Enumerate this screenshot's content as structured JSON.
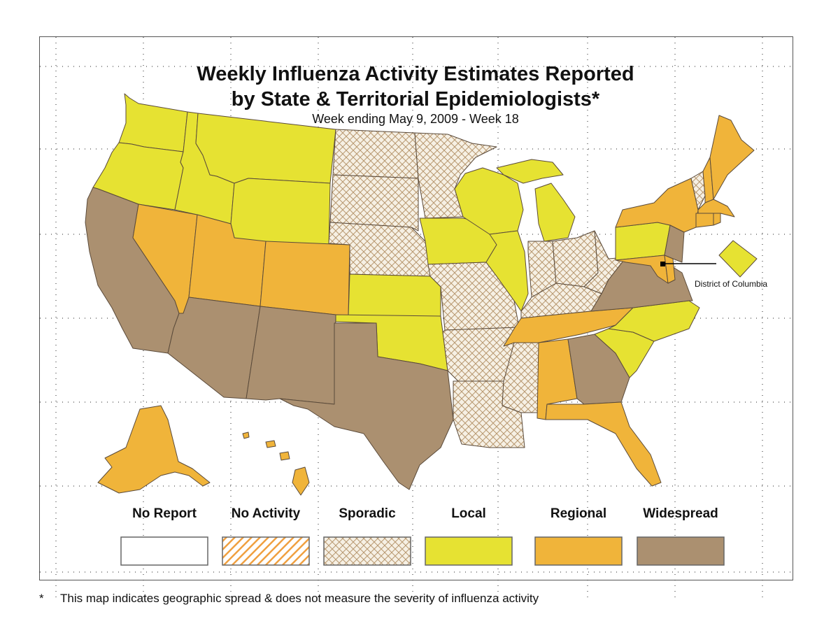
{
  "title_line1": "Weekly Influenza Activity Estimates Reported",
  "title_line2": "by State & Territorial Epidemiologists*",
  "subtitle": "Week ending May 9, 2009 - Week 18",
  "dc_label": "District of Columbia",
  "legend": [
    {
      "label": "No Report",
      "pattern": "none",
      "color": "#ffffff"
    },
    {
      "label": "No Activity",
      "pattern": "diagonal",
      "color": "#f0a040"
    },
    {
      "label": "Sporadic",
      "pattern": "crosshatch",
      "color": "#c8a878"
    },
    {
      "label": "Local",
      "pattern": "solid",
      "color": "#e6e232"
    },
    {
      "label": "Regional",
      "pattern": "solid",
      "color": "#f0b43a"
    },
    {
      "label": "Widespread",
      "pattern": "solid",
      "color": "#ab9070"
    }
  ],
  "footnote_star": "*",
  "footnote": "This map indicates geographic spread & does not measure the severity of influenza activity",
  "activity_levels": {
    "Local": [
      "WA",
      "OR",
      "ID",
      "MT",
      "WY",
      "KS",
      "OK",
      "IA",
      "WI",
      "IL",
      "MI",
      "PA",
      "NC",
      "SC",
      "DC"
    ],
    "Regional": [
      "NV",
      "UT",
      "CO",
      "TN",
      "AL",
      "FL",
      "AK",
      "HI",
      "NY",
      "ME",
      "NH",
      "MA",
      "CT",
      "RI",
      "MD",
      "DE"
    ],
    "Widespread": [
      "CA",
      "AZ",
      "NM",
      "TX",
      "GA",
      "VA",
      "NJ"
    ],
    "Sporadic": [
      "ND",
      "SD",
      "NE",
      "MN",
      "MO",
      "AR",
      "LA",
      "MS",
      "IN",
      "OH",
      "KY",
      "WV",
      "VT"
    ]
  }
}
